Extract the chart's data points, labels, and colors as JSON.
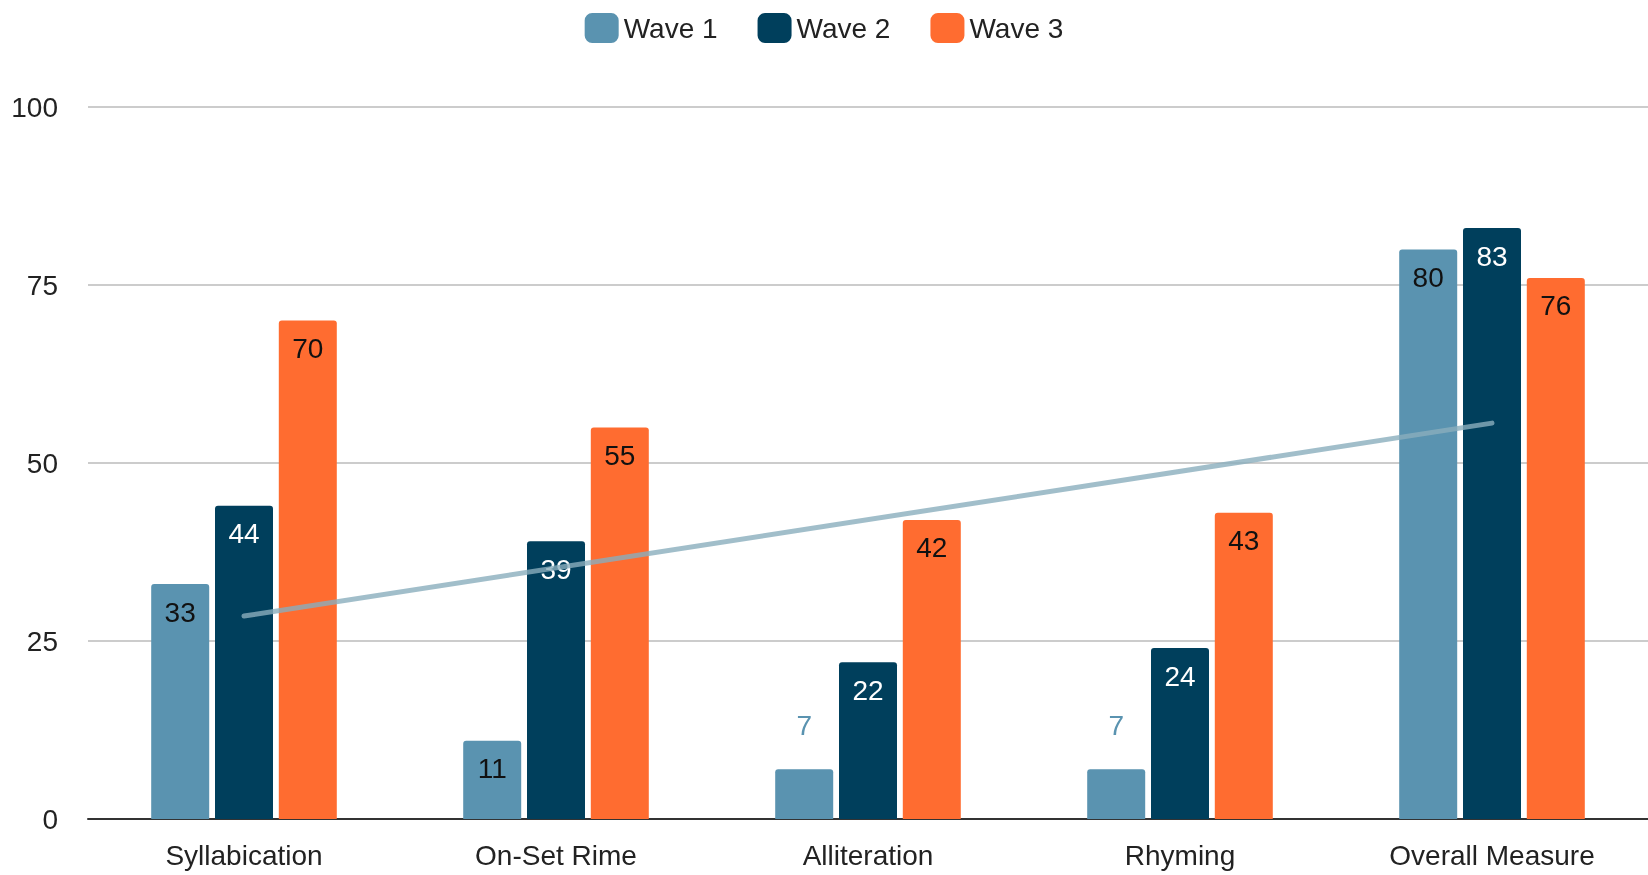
{
  "chart_data": {
    "type": "bar",
    "categories": [
      "Syllabication",
      "On-Set Rime",
      "Alliteration",
      "Rhyming",
      "Overall Measure"
    ],
    "series": [
      {
        "name": "Wave 1",
        "color": "#5a93b0",
        "values": [
          33,
          11,
          7,
          7,
          80
        ],
        "value_labels": [
          "33",
          "11",
          "7",
          "7",
          "80"
        ]
      },
      {
        "name": "Wave 2",
        "color": "#003f5c",
        "values": [
          44,
          39,
          22,
          24,
          83
        ],
        "value_labels": [
          "44",
          "39",
          "22",
          "24",
          "83"
        ]
      },
      {
        "name": "Wave 3",
        "color": "#ff6c30",
        "values": [
          70,
          55,
          42,
          43,
          76
        ],
        "value_labels": [
          "70",
          "55",
          "42",
          "43",
          "76"
        ]
      },
      {
        "type": "line",
        "color": "#8aaebd",
        "x": [
          "Syllabication",
          "Overall Measure"
        ],
        "values": [
          28.5,
          55.6
        ]
      }
    ],
    "ylim": [
      0,
      100
    ],
    "yticks": [
      0,
      25,
      50,
      75,
      100
    ],
    "grid": "y",
    "legend": "top"
  }
}
